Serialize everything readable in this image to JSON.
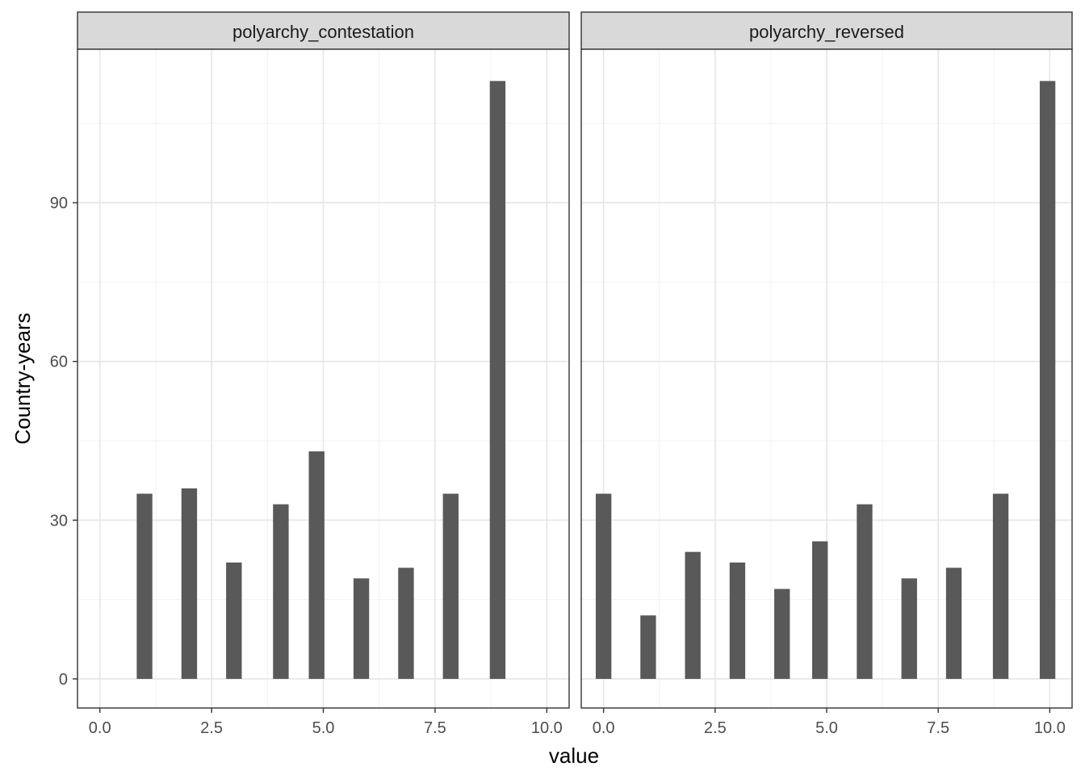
{
  "chart_data": {
    "type": "bar",
    "xlabel": "value",
    "ylabel": "Country-years",
    "x_ticks": [
      "0.0",
      "2.5",
      "5.0",
      "7.5",
      "10.0"
    ],
    "y_ticks": [
      "0",
      "30",
      "60",
      "90"
    ],
    "xlim": [
      -0.5,
      10.5
    ],
    "ylim": [
      -5.5,
      119
    ],
    "bar_color": "#595959",
    "grid": true,
    "panels": [
      {
        "title": "polyarchy_contestation",
        "x": [
          1.0,
          2.0,
          3.0,
          4.05,
          4.85,
          5.85,
          6.85,
          7.85,
          8.9
        ],
        "values": [
          35,
          36,
          22,
          33,
          43,
          19,
          21,
          35,
          113
        ]
      },
      {
        "title": "polyarchy_reversed",
        "x": [
          0.0,
          1.0,
          2.0,
          3.0,
          4.0,
          4.85,
          5.85,
          6.85,
          7.85,
          8.9,
          9.95
        ],
        "values": [
          35,
          12,
          24,
          22,
          17,
          26,
          33,
          19,
          21,
          35,
          113
        ]
      }
    ]
  }
}
